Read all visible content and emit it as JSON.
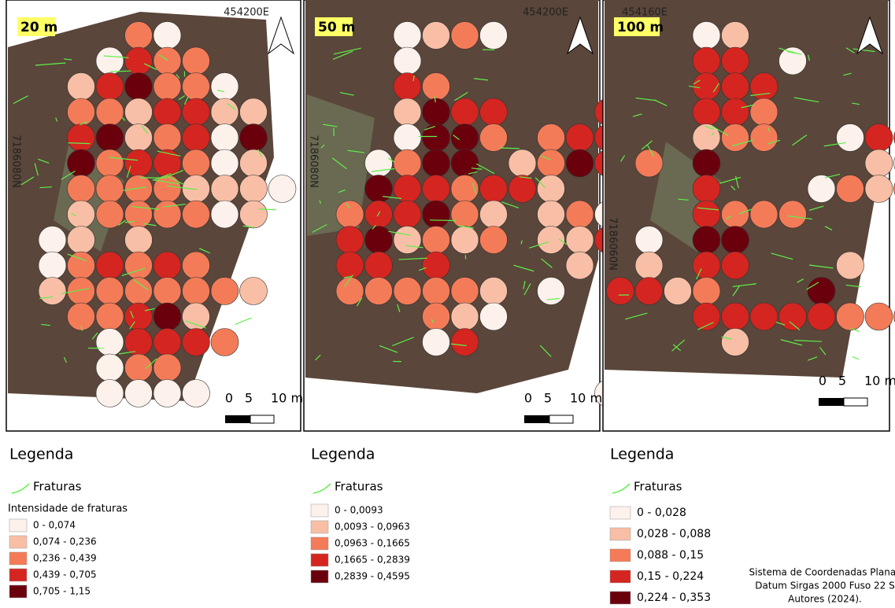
{
  "panels": [
    {
      "scale_label": "20 m",
      "easting": "454200E",
      "northing": "7186080N",
      "scalebar": [
        "0",
        "5",
        "10 m"
      ],
      "legend": {
        "title": "Legenda",
        "fractures": "Fraturas",
        "subtitle": "Intensidade de fraturas",
        "classes": [
          {
            "label": "0 - 0,074",
            "color": "#fdf1ec"
          },
          {
            "label": "0,074 - 0,236",
            "color": "#f8bfa6"
          },
          {
            "label": "0,236 - 0,439",
            "color": "#f47b58"
          },
          {
            "label": "0,439 - 0,705",
            "color": "#d42520"
          },
          {
            "label": "0,705 - 1,15",
            "color": "#6b000d"
          }
        ]
      }
    },
    {
      "scale_label": "50 m",
      "easting": "454200E",
      "northing": "7186080N",
      "scalebar": [
        "0",
        "5",
        "10 m"
      ],
      "legend": {
        "title": "Legenda",
        "fractures": "Fraturas",
        "classes": [
          {
            "label": "0 - 0,0093",
            "color": "#fdf1ec"
          },
          {
            "label": "0,0093 - 0,0963",
            "color": "#f8bfa6"
          },
          {
            "label": "0,0963 - 0,1665",
            "color": "#f47b58"
          },
          {
            "label": "0,1665 - 0,2839",
            "color": "#d42520"
          },
          {
            "label": "0,2839 - 0,4595",
            "color": "#6b000d"
          }
        ]
      }
    },
    {
      "scale_label": "100 m",
      "easting": "454160E",
      "northing": "7186060N",
      "scalebar": [
        "0",
        "5",
        "10 m"
      ],
      "legend": {
        "title": "Legenda",
        "fractures": "Fraturas",
        "classes": [
          {
            "label": "0 - 0,028",
            "color": "#fdf1ec"
          },
          {
            "label": "0,028 - 0,088",
            "color": "#f8bfa6"
          },
          {
            "label": "0,088 - 0,15",
            "color": "#f47b58"
          },
          {
            "label": "0,15 - 0,224",
            "color": "#d42520"
          },
          {
            "label": "0,224 - 0,353",
            "color": "#6b000d"
          }
        ]
      }
    }
  ],
  "credits": [
    "Sistema de Coordenadas Planas",
    "Datum Sirgas 2000 Fuso 22 S",
    "Autores (2024)."
  ]
}
